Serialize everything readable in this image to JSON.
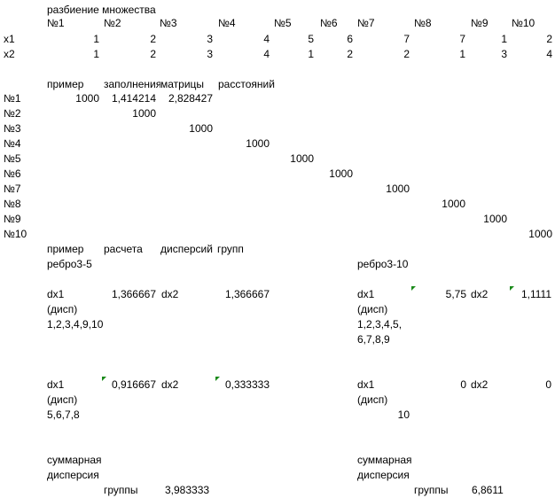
{
  "partition": {
    "title": "разбиение множества",
    "headers": [
      "№1",
      "№2",
      "№3",
      "№4",
      "№5",
      "№6",
      "№7",
      "№8",
      "№9",
      "№10"
    ],
    "rows": [
      {
        "label": "x1",
        "values": [
          "1",
          "2",
          "3",
          "4",
          "5",
          "6",
          "7",
          "7",
          "1",
          "2"
        ]
      },
      {
        "label": "x2",
        "values": [
          "1",
          "2",
          "3",
          "4",
          "1",
          "2",
          "2",
          "1",
          "3",
          "4"
        ]
      }
    ]
  },
  "matrix": {
    "title_words": [
      "пример",
      "заполнения",
      "матрицы",
      "расстояний"
    ],
    "row_labels": [
      "№1",
      "№2",
      "№3",
      "№4",
      "№5",
      "№6",
      "№7",
      "№8",
      "№9",
      "№10"
    ],
    "first_row_extra": [
      "1,414214",
      "2,828427"
    ],
    "diagonal_value": "1000"
  },
  "variance": {
    "title_words": [
      "пример",
      "расчета",
      "дисперсий",
      "групп"
    ],
    "left": {
      "edge": "ребро3-5",
      "groups": [
        {
          "dx1": "dx1",
          "disp": "(дисп)",
          "members": [
            "1,2,3,4,9,10"
          ],
          "dx1_value": "1,366667",
          "dx2": "dx2",
          "dx2_value": "1,366667"
        },
        {
          "dx1": "dx1",
          "disp": "(дисп)",
          "members": [
            "5,6,7,8"
          ],
          "dx1_value": "0,916667",
          "dx2": "dx2",
          "dx2_value": "0,333333"
        }
      ],
      "total": {
        "line1": "суммарная",
        "line2": "дисперсия",
        "line3": "группы",
        "value": "3,983333"
      }
    },
    "right": {
      "edge": "ребро3-10",
      "groups": [
        {
          "dx1": "dx1",
          "disp": "(дисп)",
          "members": [
            "1,2,3,4,5,",
            "6,7,8,9"
          ],
          "dx1_value": "5,75",
          "dx2": "dx2",
          "dx2_value": "1,1111"
        },
        {
          "dx1": "dx1",
          "disp": "(дисп)",
          "members": [
            "10"
          ],
          "dx1_value": "0",
          "dx2": "dx2",
          "dx2_value": "0"
        }
      ],
      "total": {
        "line1": "суммарная",
        "line2": "дисперсия",
        "line3": "группы",
        "value": "6,8611"
      }
    }
  },
  "colors": {
    "comment_marker": "#1a8a1a"
  }
}
